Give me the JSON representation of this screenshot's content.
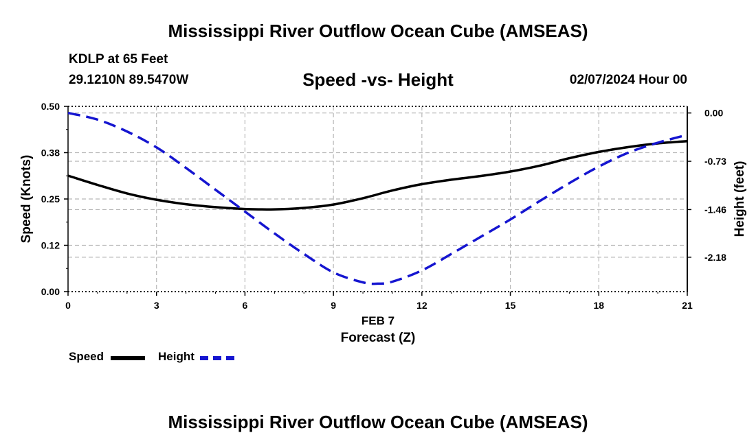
{
  "page": {
    "title_top": "Mississippi River Outflow Ocean Cube (AMSEAS)",
    "title_bottom": "Mississippi River Outflow Ocean Cube (AMSEAS)",
    "station": "KDLP at 65 Feet",
    "coords": "29.1210N  89.5470W",
    "date": "02/07/2024 Hour 00"
  },
  "legend": {
    "speed_label": "Speed",
    "height_label": "Height",
    "speed_color": "#000000",
    "height_color": "#1515d0"
  },
  "chart_data": {
    "type": "line",
    "title": "Speed -vs- Height",
    "xlabel_date": "FEB 7",
    "xlabel": "Forecast (Z)",
    "ylabel_left": "Speed (Knots)",
    "ylabel_right": "Height (feet)",
    "xlim": [
      0,
      21
    ],
    "ylim_left": [
      0,
      0.5
    ],
    "ylim_right": [
      -2.7,
      0.1
    ],
    "x_ticks": [
      0,
      3,
      6,
      9,
      12,
      15,
      18,
      21
    ],
    "x_tick_labels": [
      "0",
      "3",
      "6",
      "9",
      "12",
      "15",
      "18",
      "21"
    ],
    "y_left_ticks": [
      0,
      0.125,
      0.25,
      0.375,
      0.5
    ],
    "y_left_tick_labels": [
      "0.00",
      "0.12",
      "0.25",
      "0.38",
      "0.50"
    ],
    "y_right_ticks": [
      0.0,
      -0.73,
      -1.46,
      -2.18
    ],
    "y_right_tick_labels": [
      "0.00",
      "-0.73",
      "-1.46",
      "-2.18"
    ],
    "grid": true,
    "series": [
      {
        "name": "Speed",
        "axis": "left",
        "style": "solid",
        "x": [
          0,
          1,
          2,
          3,
          4,
          5,
          6,
          7,
          8,
          9,
          10,
          11,
          12,
          13,
          14,
          15,
          16,
          17,
          18,
          19,
          20,
          21
        ],
        "values": [
          0.313,
          0.288,
          0.265,
          0.248,
          0.236,
          0.228,
          0.223,
          0.222,
          0.226,
          0.235,
          0.252,
          0.273,
          0.29,
          0.302,
          0.312,
          0.324,
          0.34,
          0.36,
          0.377,
          0.39,
          0.4,
          0.406
        ]
      },
      {
        "name": "Height",
        "axis": "right",
        "style": "dashed",
        "x": [
          0,
          1,
          2,
          3,
          4,
          5,
          6,
          7,
          8,
          9,
          10,
          10.5,
          11,
          12,
          13,
          14,
          15,
          16,
          17,
          18,
          19,
          20,
          21
        ],
        "values": [
          0.0,
          -0.1,
          -0.28,
          -0.52,
          -0.83,
          -1.16,
          -1.49,
          -1.82,
          -2.13,
          -2.41,
          -2.56,
          -2.58,
          -2.55,
          -2.38,
          -2.13,
          -1.87,
          -1.61,
          -1.33,
          -1.06,
          -0.81,
          -0.6,
          -0.45,
          -0.33
        ]
      }
    ]
  }
}
